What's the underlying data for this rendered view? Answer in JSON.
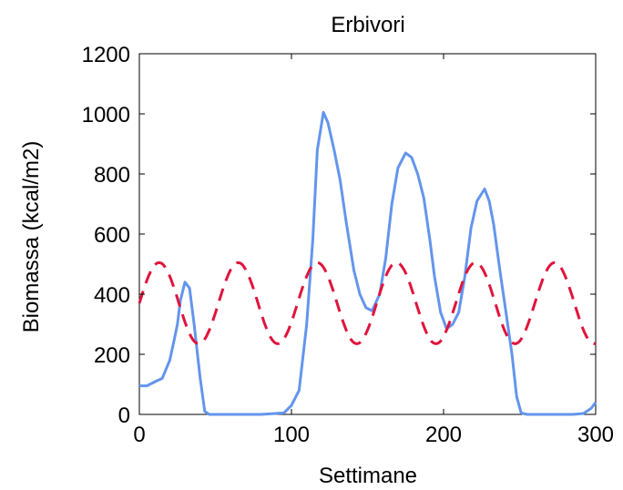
{
  "chart_data": {
    "type": "line",
    "title": "Erbivori",
    "xlabel": "Settimane",
    "ylabel": "Biomassa (kcal/m2)",
    "xlim": [
      0,
      300
    ],
    "ylim": [
      0,
      1200
    ],
    "xticks": [
      0,
      100,
      200,
      300
    ],
    "yticks": [
      0,
      200,
      400,
      600,
      800,
      1000,
      1200
    ],
    "xtick_labels": [
      "0",
      "100",
      "200",
      "300"
    ],
    "ytick_labels": [
      "0",
      "200",
      "400",
      "600",
      "800",
      "1000",
      "1200"
    ],
    "grid": false,
    "legend": "none",
    "series": [
      {
        "style": "solid",
        "color": "#6495ed",
        "points": [
          [
            0,
            95
          ],
          [
            5,
            95
          ],
          [
            10,
            108
          ],
          [
            15,
            120
          ],
          [
            20,
            180
          ],
          [
            23,
            250
          ],
          [
            25,
            300
          ],
          [
            27,
            380
          ],
          [
            30,
            440
          ],
          [
            33,
            420
          ],
          [
            36,
            300
          ],
          [
            40,
            120
          ],
          [
            43,
            10
          ],
          [
            46,
            0
          ],
          [
            60,
            0
          ],
          [
            80,
            0
          ],
          [
            95,
            5
          ],
          [
            100,
            30
          ],
          [
            105,
            80
          ],
          [
            110,
            300
          ],
          [
            114,
            580
          ],
          [
            117,
            880
          ],
          [
            121,
            1005
          ],
          [
            124,
            970
          ],
          [
            128,
            880
          ],
          [
            132,
            780
          ],
          [
            136,
            640
          ],
          [
            141,
            480
          ],
          [
            145,
            400
          ],
          [
            149,
            355
          ],
          [
            153,
            345
          ],
          [
            158,
            400
          ],
          [
            162,
            520
          ],
          [
            166,
            700
          ],
          [
            170,
            820
          ],
          [
            175,
            870
          ],
          [
            179,
            855
          ],
          [
            183,
            800
          ],
          [
            187,
            720
          ],
          [
            191,
            580
          ],
          [
            194,
            460
          ],
          [
            198,
            340
          ],
          [
            202,
            285
          ],
          [
            206,
            300
          ],
          [
            210,
            340
          ],
          [
            214,
            460
          ],
          [
            218,
            620
          ],
          [
            222,
            710
          ],
          [
            227,
            750
          ],
          [
            230,
            710
          ],
          [
            233,
            630
          ],
          [
            237,
            480
          ],
          [
            241,
            340
          ],
          [
            245,
            200
          ],
          [
            248,
            60
          ],
          [
            251,
            5
          ],
          [
            255,
            0
          ],
          [
            270,
            0
          ],
          [
            285,
            0
          ],
          [
            292,
            3
          ],
          [
            297,
            20
          ],
          [
            300,
            40
          ]
        ]
      },
      {
        "style": "dashed",
        "color": "#e0143c",
        "mean": 370,
        "amplitude": 135,
        "period": 52,
        "phase": 13
      }
    ]
  }
}
